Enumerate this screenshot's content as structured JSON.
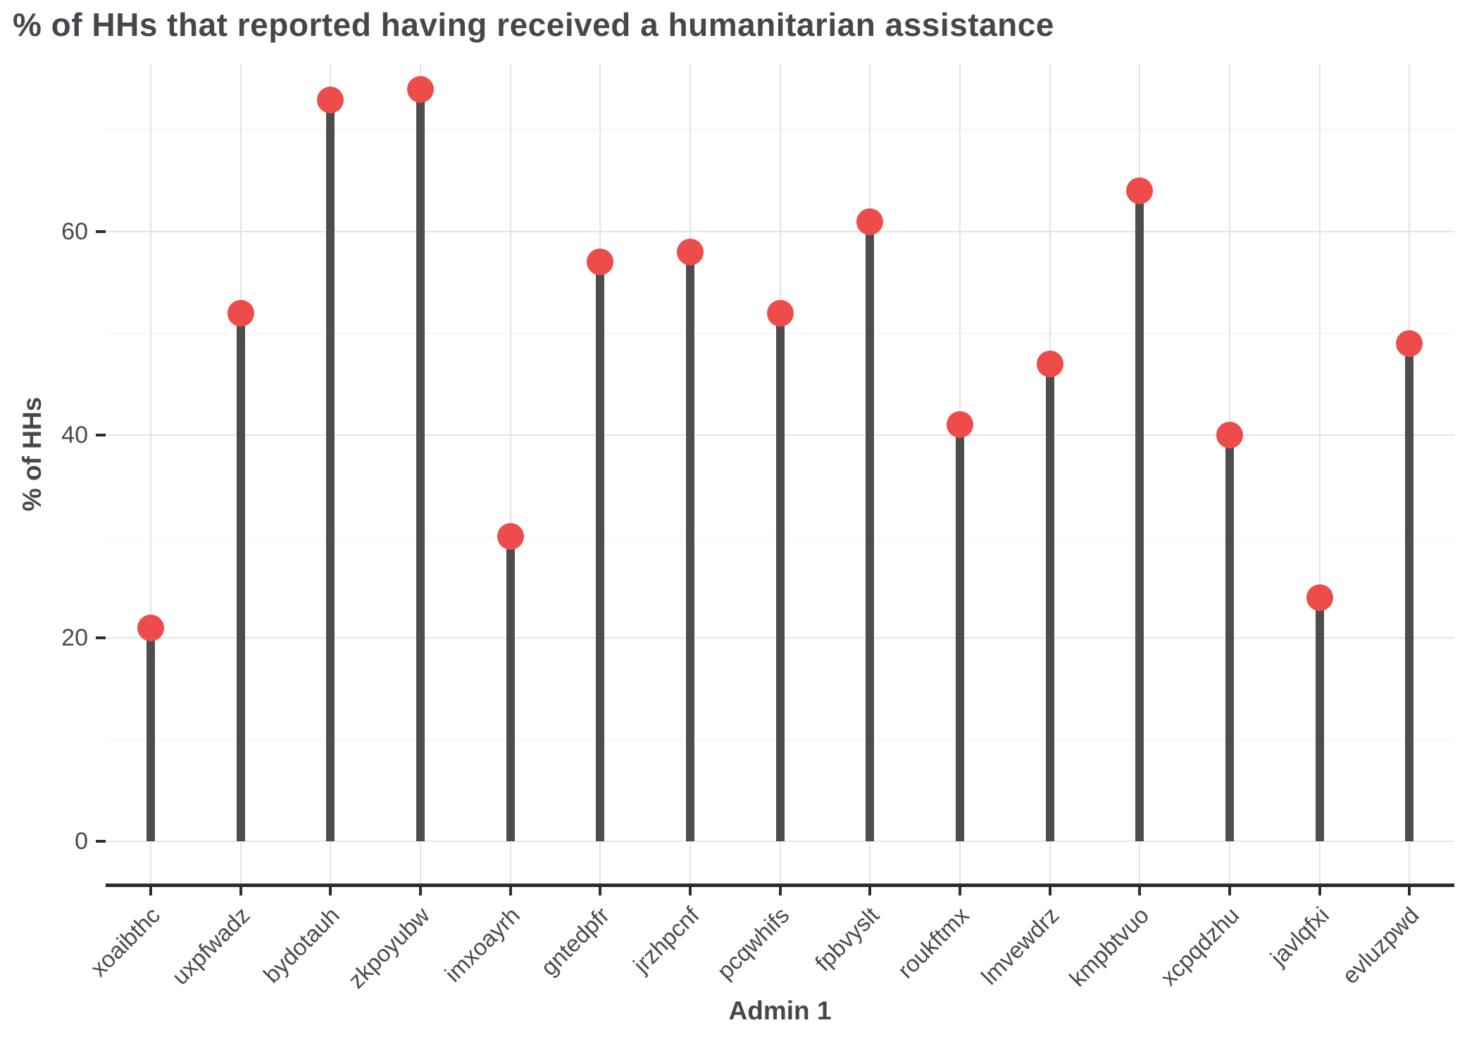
{
  "title": "% of HHs that reported having received a humanitarian assistance",
  "chart_data": {
    "type": "lollipop",
    "title": "% of HHs that reported having received a humanitarian assistance",
    "xlabel": "Admin 1",
    "ylabel": "% of HHs",
    "categories": [
      "xoaibthc",
      "uxpfwadz",
      "bydotauh",
      "zkpoyubw",
      "imxoayrh",
      "gntedpfr",
      "jrzhpcnf",
      "pcqwhifs",
      "fpbvyslt",
      "roukftmx",
      "lmvewdrz",
      "kmpbtvuo",
      "xcpqdzhu",
      "javlqfxi",
      "evluzpwd"
    ],
    "values": [
      21,
      52,
      73,
      74,
      30,
      57,
      58,
      52,
      61,
      41,
      47,
      64,
      40,
      24,
      49
    ],
    "yticks": [
      0,
      20,
      40,
      60
    ],
    "ylim": [
      0,
      76.5
    ],
    "grid": "on",
    "legend": "none",
    "colors": {
      "dot": "#ee4b4b",
      "stem": "#4d4d4d",
      "axis_line": "#2d2d2d",
      "grid_major": "#e4e4e4",
      "grid_minor": "#f1f1f1",
      "text": "#4a4a4a",
      "title": "#45474d"
    }
  }
}
